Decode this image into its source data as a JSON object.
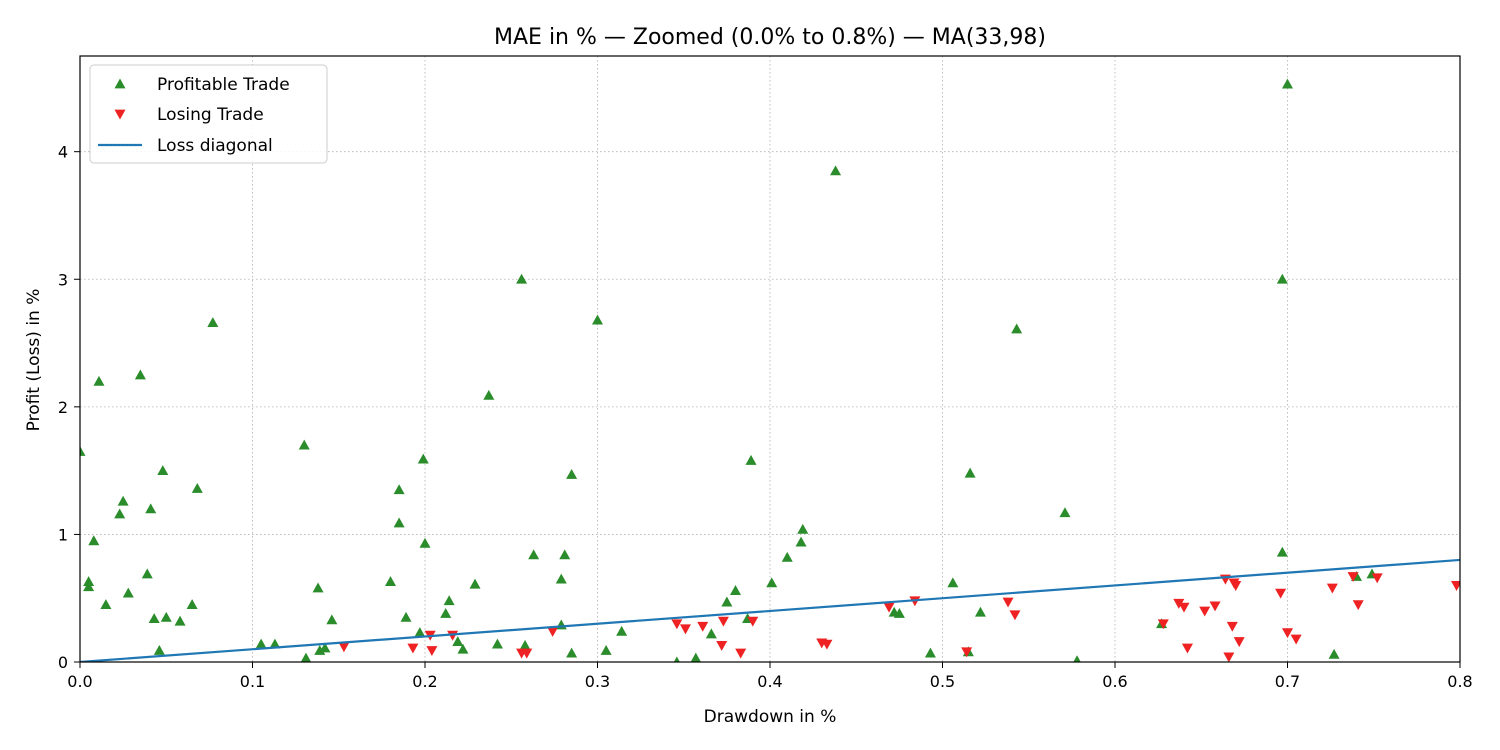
{
  "chart_data": {
    "type": "scatter",
    "title": "MAE in % — Zoomed (0.0% to 0.8%) — MA(33,98)",
    "xlabel": "Drawdown in %",
    "ylabel": "Profit (Loss) in %",
    "xlim": [
      0,
      0.8
    ],
    "ylim": [
      0,
      4.75
    ],
    "xticks": [
      0.0,
      0.1,
      0.2,
      0.3,
      0.4,
      0.5,
      0.6,
      0.7,
      0.8
    ],
    "xtick_labels": [
      "0.0",
      "0.1",
      "0.2",
      "0.3",
      "0.4",
      "0.5",
      "0.6",
      "0.7",
      "0.8"
    ],
    "yticks": [
      0,
      1,
      2,
      3,
      4
    ],
    "ytick_labels": [
      "0",
      "1",
      "2",
      "3",
      "4"
    ],
    "grid": true,
    "legend_position": "top-left",
    "colors": {
      "profit": "#2a8c2a",
      "loss": "#ee2222",
      "diagonal": "#1f77b4"
    },
    "series": [
      {
        "name": "Profitable Trade",
        "marker": "triangle-up",
        "points": [
          [
            0.0,
            1.65
          ],
          [
            0.005,
            0.63
          ],
          [
            0.005,
            0.59
          ],
          [
            0.008,
            0.95
          ],
          [
            0.011,
            2.2
          ],
          [
            0.015,
            0.45
          ],
          [
            0.023,
            1.16
          ],
          [
            0.025,
            1.26
          ],
          [
            0.028,
            0.54
          ],
          [
            0.035,
            2.25
          ],
          [
            0.039,
            0.69
          ],
          [
            0.041,
            1.2
          ],
          [
            0.043,
            0.34
          ],
          [
            0.046,
            0.09
          ],
          [
            0.048,
            1.5
          ],
          [
            0.05,
            0.35
          ],
          [
            0.058,
            0.32
          ],
          [
            0.065,
            0.45
          ],
          [
            0.068,
            1.36
          ],
          [
            0.077,
            2.66
          ],
          [
            0.105,
            0.14
          ],
          [
            0.113,
            0.14
          ],
          [
            0.13,
            1.7
          ],
          [
            0.131,
            0.03
          ],
          [
            0.138,
            0.58
          ],
          [
            0.139,
            0.09
          ],
          [
            0.142,
            0.11
          ],
          [
            0.146,
            0.33
          ],
          [
            0.18,
            0.63
          ],
          [
            0.185,
            1.35
          ],
          [
            0.185,
            1.09
          ],
          [
            0.189,
            0.35
          ],
          [
            0.197,
            0.23
          ],
          [
            0.199,
            1.59
          ],
          [
            0.2,
            0.93
          ],
          [
            0.212,
            0.38
          ],
          [
            0.214,
            0.48
          ],
          [
            0.219,
            0.16
          ],
          [
            0.222,
            0.1
          ],
          [
            0.229,
            0.61
          ],
          [
            0.237,
            2.09
          ],
          [
            0.242,
            0.14
          ],
          [
            0.256,
            3.0
          ],
          [
            0.258,
            0.13
          ],
          [
            0.263,
            0.84
          ],
          [
            0.279,
            0.65
          ],
          [
            0.279,
            0.29
          ],
          [
            0.281,
            0.84
          ],
          [
            0.285,
            1.47
          ],
          [
            0.285,
            0.07
          ],
          [
            0.3,
            2.68
          ],
          [
            0.305,
            0.09
          ],
          [
            0.314,
            0.24
          ],
          [
            0.346,
            0.0
          ],
          [
            0.357,
            0.03
          ],
          [
            0.366,
            0.22
          ],
          [
            0.375,
            0.47
          ],
          [
            0.38,
            0.56
          ],
          [
            0.387,
            0.34
          ],
          [
            0.389,
            1.58
          ],
          [
            0.401,
            0.62
          ],
          [
            0.41,
            0.82
          ],
          [
            0.418,
            0.94
          ],
          [
            0.419,
            1.04
          ],
          [
            0.438,
            3.85
          ],
          [
            0.472,
            0.39
          ],
          [
            0.475,
            0.38
          ],
          [
            0.493,
            0.07
          ],
          [
            0.506,
            0.62
          ],
          [
            0.515,
            0.08
          ],
          [
            0.516,
            1.48
          ],
          [
            0.522,
            0.39
          ],
          [
            0.543,
            2.61
          ],
          [
            0.571,
            1.17
          ],
          [
            0.578,
            0.01
          ],
          [
            0.627,
            0.3
          ],
          [
            0.697,
            0.86
          ],
          [
            0.697,
            3.0
          ],
          [
            0.7,
            4.53
          ],
          [
            0.727,
            0.06
          ],
          [
            0.74,
            0.67
          ],
          [
            0.749,
            0.69
          ]
        ]
      },
      {
        "name": "Losing Trade",
        "marker": "triangle-down",
        "points": [
          [
            0.153,
            0.12
          ],
          [
            0.193,
            0.11
          ],
          [
            0.203,
            0.21
          ],
          [
            0.204,
            0.09
          ],
          [
            0.216,
            0.21
          ],
          [
            0.256,
            0.07
          ],
          [
            0.259,
            0.07
          ],
          [
            0.274,
            0.24
          ],
          [
            0.346,
            0.3
          ],
          [
            0.351,
            0.26
          ],
          [
            0.361,
            0.28
          ],
          [
            0.372,
            0.13
          ],
          [
            0.373,
            0.32
          ],
          [
            0.383,
            0.07
          ],
          [
            0.39,
            0.32
          ],
          [
            0.43,
            0.15
          ],
          [
            0.433,
            0.14
          ],
          [
            0.469,
            0.43
          ],
          [
            0.484,
            0.48
          ],
          [
            0.514,
            0.08
          ],
          [
            0.538,
            0.47
          ],
          [
            0.542,
            0.37
          ],
          [
            0.628,
            0.3
          ],
          [
            0.637,
            0.46
          ],
          [
            0.64,
            0.43
          ],
          [
            0.642,
            0.11
          ],
          [
            0.652,
            0.4
          ],
          [
            0.658,
            0.44
          ],
          [
            0.664,
            0.65
          ],
          [
            0.666,
            0.04
          ],
          [
            0.668,
            0.28
          ],
          [
            0.669,
            0.62
          ],
          [
            0.67,
            0.6
          ],
          [
            0.672,
            0.16
          ],
          [
            0.696,
            0.54
          ],
          [
            0.7,
            0.23
          ],
          [
            0.705,
            0.18
          ],
          [
            0.726,
            0.58
          ],
          [
            0.738,
            0.67
          ],
          [
            0.741,
            0.45
          ],
          [
            0.752,
            0.66
          ],
          [
            0.798,
            0.6
          ]
        ]
      },
      {
        "name": "Loss diagonal",
        "marker": "line",
        "points": [
          [
            0.0,
            0.0
          ],
          [
            0.8,
            0.8
          ]
        ]
      }
    ]
  }
}
